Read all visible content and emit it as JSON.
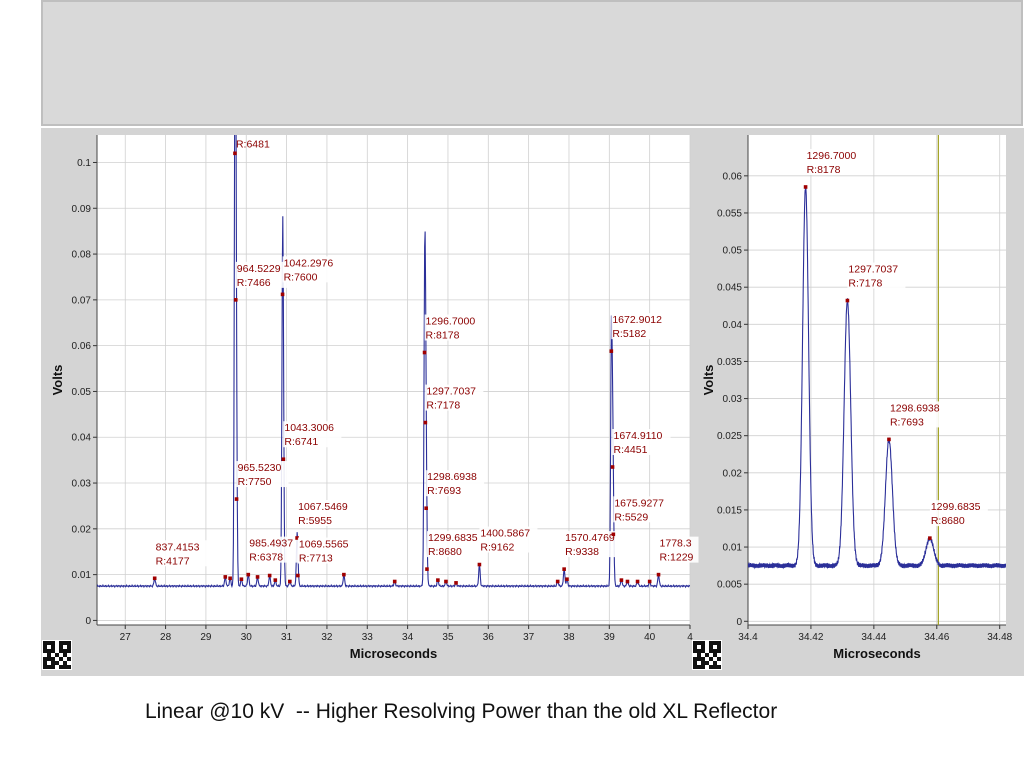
{
  "caption": "Linear @10 kV  -- Higher Resolving Power than the old XL Reflector",
  "colors": {
    "trace": "#2b2f99",
    "label": "#8b0000",
    "marker": "#a00000",
    "cursor": "#a0a020",
    "grid": "#d0d0d0",
    "panel": "#d4d4d4"
  },
  "icons": [
    "qr-code-icon",
    "qr-code-icon"
  ],
  "chart_data": [
    {
      "type": "line",
      "xlabel": "Microseconds",
      "ylabel": "Volts",
      "xlim": [
        26.3,
        41.0
      ],
      "ylim": [
        -0.001,
        0.106
      ],
      "xticks": [
        "27",
        "28",
        "29",
        "30",
        "31",
        "32",
        "33",
        "34",
        "35",
        "36",
        "37",
        "38",
        "39",
        "40",
        "4"
      ],
      "yticks": [
        "0",
        "0.01",
        "0.02",
        "0.03",
        "0.04",
        "0.05",
        "0.06",
        "0.07",
        "0.08",
        "0.09",
        "0.1"
      ],
      "grid": true,
      "baseline": 0.0075,
      "peaks": [
        {
          "x": 27.73,
          "y": 0.0092,
          "label": [
            "837.4153",
            "R:4177"
          ]
        },
        {
          "x": 29.48,
          "y": 0.0095
        },
        {
          "x": 29.6,
          "y": 0.0092
        },
        {
          "x": 29.72,
          "y": 0.102,
          "label": [
            "",
            "R:6481"
          ]
        },
        {
          "x": 29.74,
          "y": 0.07,
          "label": [
            "964.5229",
            "R:7466"
          ]
        },
        {
          "x": 29.76,
          "y": 0.0265,
          "label": [
            "965.5230",
            "R:7750"
          ]
        },
        {
          "x": 29.88,
          "y": 0.009
        },
        {
          "x": 30.05,
          "y": 0.01,
          "label": [
            "985.4937",
            "R:6378"
          ]
        },
        {
          "x": 30.28,
          "y": 0.0095
        },
        {
          "x": 30.58,
          "y": 0.0098
        },
        {
          "x": 30.72,
          "y": 0.0088
        },
        {
          "x": 30.9,
          "y": 0.0712,
          "label": [
            "1042.2976",
            "R:7600"
          ]
        },
        {
          "x": 30.92,
          "y": 0.0352,
          "label": [
            "1043.3006",
            "R:6741"
          ]
        },
        {
          "x": 31.08,
          "y": 0.0085
        },
        {
          "x": 31.26,
          "y": 0.018,
          "label": [
            "1067.5469",
            "R:5955"
          ]
        },
        {
          "x": 31.28,
          "y": 0.0098,
          "label": [
            "1069.5565",
            "R:7713"
          ]
        },
        {
          "x": 32.42,
          "y": 0.01
        },
        {
          "x": 33.68,
          "y": 0.0085
        },
        {
          "x": 34.42,
          "y": 0.0585,
          "label": [
            "1296.7000",
            "R:8178"
          ]
        },
        {
          "x": 34.44,
          "y": 0.0432,
          "label": [
            "1297.7037",
            "R:7178"
          ]
        },
        {
          "x": 34.46,
          "y": 0.0245,
          "label": [
            "1298.6938",
            "R:7693"
          ]
        },
        {
          "x": 34.48,
          "y": 0.0112,
          "label": [
            "1299.6835",
            "R:8680"
          ]
        },
        {
          "x": 34.75,
          "y": 0.0088
        },
        {
          "x": 34.95,
          "y": 0.0085
        },
        {
          "x": 35.2,
          "y": 0.0082
        },
        {
          "x": 35.78,
          "y": 0.0122,
          "label": [
            "1400.5867",
            "R:9162"
          ]
        },
        {
          "x": 37.72,
          "y": 0.0085
        },
        {
          "x": 37.88,
          "y": 0.0112,
          "label": [
            "1570.4769",
            "R:9338"
          ]
        },
        {
          "x": 37.95,
          "y": 0.009
        },
        {
          "x": 39.05,
          "y": 0.0588,
          "label": [
            "1672.9012",
            "R:5182"
          ]
        },
        {
          "x": 39.08,
          "y": 0.0335,
          "label": [
            "1674.9110",
            "R:4451"
          ]
        },
        {
          "x": 39.1,
          "y": 0.0188,
          "label": [
            "1675.9277",
            "R:5529"
          ]
        },
        {
          "x": 39.3,
          "y": 0.0088
        },
        {
          "x": 39.45,
          "y": 0.0085
        },
        {
          "x": 39.7,
          "y": 0.0085
        },
        {
          "x": 40.0,
          "y": 0.0085
        },
        {
          "x": 40.22,
          "y": 0.01,
          "label": [
            "1778.3",
            "R:1229"
          ]
        }
      ]
    },
    {
      "type": "line",
      "xlabel": "Microseconds",
      "ylabel": "Volts",
      "xlim": [
        34.4,
        34.482
      ],
      "ylim": [
        -0.0005,
        0.0655
      ],
      "xticks": [
        "34.4",
        "34.42",
        "34.44",
        "34.46",
        "34.48"
      ],
      "yticks": [
        "0",
        "0.005",
        "0.01",
        "0.015",
        "0.02",
        "0.025",
        "0.03",
        "0.035",
        "0.04",
        "0.045",
        "0.05",
        "0.055",
        "0.06"
      ],
      "grid": true,
      "baseline": 0.0075,
      "cursor_x": 34.4605,
      "peaks": [
        {
          "x": 34.4183,
          "y": 0.0585,
          "label": [
            "1296.7000",
            "R:8178"
          ]
        },
        {
          "x": 34.4316,
          "y": 0.0432,
          "label": [
            "1297.7037",
            "R:7178"
          ]
        },
        {
          "x": 34.4448,
          "y": 0.0245,
          "label": [
            "1298.6938",
            "R:7693"
          ]
        },
        {
          "x": 34.4578,
          "y": 0.0112,
          "label": [
            "1299.6835",
            "R:8680"
          ]
        }
      ]
    }
  ]
}
